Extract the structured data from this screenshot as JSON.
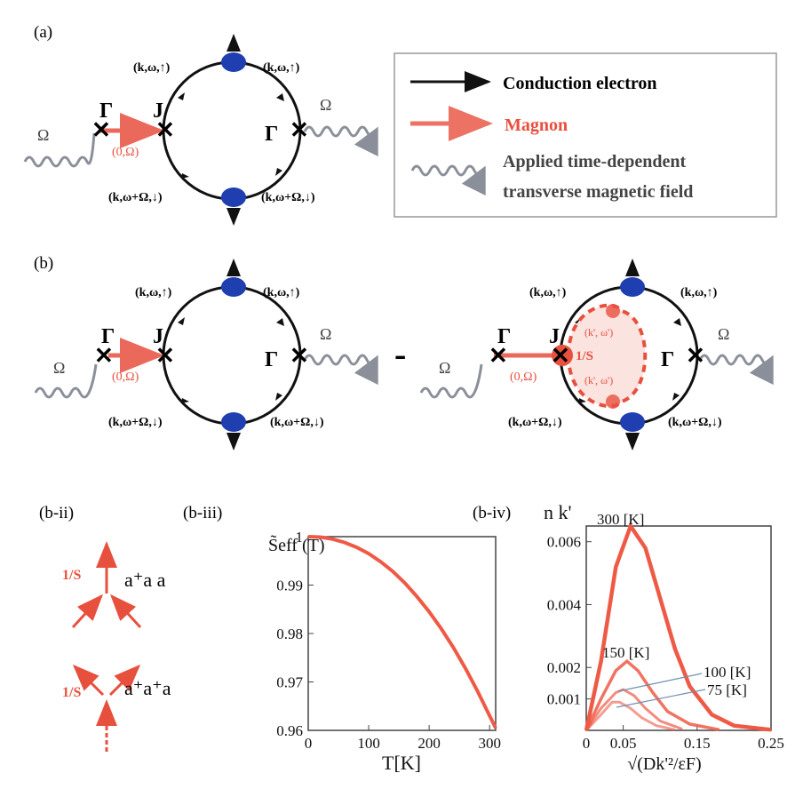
{
  "panels": {
    "a": "(a)",
    "b": "(b)",
    "b_ii": "(b-ii)",
    "b_iii": "(b-iii)",
    "b_iv": "(b-iv)"
  },
  "diagram": {
    "gamma": "Γ",
    "j": "J",
    "omega": "Ω",
    "ket_up_left": "(k,ω,↑)",
    "ket_up_right": "(k,ω,↑)",
    "ket_down_left": "(k,ω+Ω,↓)",
    "ket_down_right": "(k,ω+Ω,↓)",
    "magnon_label": "(0,Ω)",
    "minus": "-",
    "one_over_s": "1/S",
    "loop_label_top": "(k', ω')",
    "loop_label_bottom": "(k', ω')"
  },
  "legend": {
    "conduction": "Conduction electron",
    "magnon": "Magnon",
    "field_line1": "Applied time-dependent",
    "field_line2": "transverse magnetic field"
  },
  "vertices": {
    "one_over_s_top": "1/S",
    "one_over_s_bottom": "1/S",
    "ops_top": "a⁺a a",
    "ops_bottom": "a⁺a⁺a"
  },
  "colors": {
    "magnon": "#e8503e",
    "curve": "#ee5a46",
    "electron": "#111111",
    "dot": "#1f3fb0",
    "wave": "#8a8f99"
  },
  "chart_data": [
    {
      "type": "line",
      "title": "",
      "ylabel": "S̃eff (T)",
      "xlabel": "T[K]",
      "xlim": [
        0,
        310
      ],
      "ylim": [
        0.96,
        1.0
      ],
      "xticks": [
        0,
        100,
        200,
        300
      ],
      "yticks": [
        0.96,
        0.97,
        0.98,
        0.99,
        1
      ],
      "ytick_labels": [
        "0.96",
        "0.97",
        "0.98",
        "0.99",
        "1"
      ],
      "x": [
        0,
        20,
        40,
        60,
        80,
        100,
        120,
        140,
        160,
        180,
        200,
        220,
        240,
        260,
        280,
        300,
        310
      ],
      "y": [
        1.0,
        0.9999,
        0.9995,
        0.9988,
        0.9978,
        0.9965,
        0.9948,
        0.9928,
        0.9904,
        0.9876,
        0.9845,
        0.981,
        0.9771,
        0.9728,
        0.9681,
        0.963,
        0.9605
      ]
    },
    {
      "type": "line",
      "title": "",
      "ylabel": "n k'",
      "xlabel": "√(Dk'²/εF)",
      "xlim": [
        0,
        0.25
      ],
      "ylim": [
        0,
        0.0065
      ],
      "xticks": [
        0,
        0.05,
        0.15,
        0.25
      ],
      "yticks": [
        0.001,
        0.002,
        0.004,
        0.006
      ],
      "ytick_labels": [
        "0.001",
        "0.002",
        "0.004",
        "0.006"
      ],
      "series": [
        {
          "name": "300 [K]",
          "x": [
            0,
            0.02,
            0.04,
            0.06,
            0.08,
            0.1,
            0.12,
            0.14,
            0.17,
            0.2,
            0.25
          ],
          "y": [
            0,
            0.0022,
            0.0052,
            0.0065,
            0.0058,
            0.0042,
            0.0026,
            0.0014,
            0.0005,
            0.00015,
            2e-05
          ]
        },
        {
          "name": "150 [K]",
          "x": [
            0,
            0.02,
            0.04,
            0.055,
            0.07,
            0.09,
            0.11,
            0.14,
            0.18
          ],
          "y": [
            0,
            0.001,
            0.0019,
            0.0022,
            0.0019,
            0.0012,
            0.0006,
            0.0002,
            2e-05
          ]
        },
        {
          "name": "100 [K]",
          "x": [
            0,
            0.02,
            0.04,
            0.05,
            0.065,
            0.08,
            0.1,
            0.13
          ],
          "y": [
            0,
            0.0007,
            0.0012,
            0.0013,
            0.0011,
            0.0007,
            0.0003,
            4e-05
          ]
        },
        {
          "name": "75 [K]",
          "x": [
            0,
            0.02,
            0.035,
            0.045,
            0.06,
            0.075,
            0.095,
            0.12
          ],
          "y": [
            0,
            0.0005,
            0.0009,
            0.0009,
            0.0007,
            0.0004,
            0.00015,
            2e-05
          ]
        }
      ]
    }
  ]
}
